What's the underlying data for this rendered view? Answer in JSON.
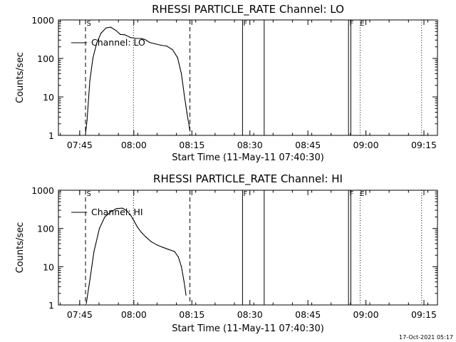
{
  "footer": {
    "date": "17-Oct-2021 05:17"
  },
  "panel_geometry_note": "",
  "chart_data": [
    {
      "type": "line",
      "title": "RHESSI PARTICLE_RATE Channel: LO",
      "xlabel": "Start Time (11-May-11 07:40:30)",
      "ylabel": "Counts/sec",
      "y_scale": "log",
      "ylim": [
        1,
        1000
      ],
      "y_ticks": [
        1,
        10,
        100,
        1000
      ],
      "y_tick_labels": [
        "1",
        "10",
        "100",
        "1000"
      ],
      "x_unit": "minutes after 07:40:30",
      "xlim": [
        0,
        98
      ],
      "x_ticks": [
        5.5,
        19.5,
        34.5,
        49.5,
        64.5,
        79.5,
        94.5
      ],
      "x_tick_labels": [
        "07:45",
        "08:00",
        "08:15",
        "08:30",
        "08:45",
        "09:00",
        "09:15"
      ],
      "legend": {
        "label": "Channel: LO",
        "position": "top-left"
      },
      "markers": {
        "S": 7.0,
        "F1": 47.5,
        "F2": 75.0,
        "E": 77.7
      },
      "vlines_dashed": [
        7.0,
        34.0
      ],
      "vlines_dotted": [
        19.4,
        78.0,
        93.9
      ],
      "vlines_solid": [
        47.6,
        53.2,
        75.0,
        75.6
      ],
      "series": [
        {
          "name": "Channel: LO",
          "x": [
            7.0,
            7.4,
            8.1,
            8.9,
            9.9,
            11.0,
            12.3,
            13.5,
            14.9,
            16.0,
            17.2,
            18.6,
            20.0,
            21.4,
            22.4,
            23.6,
            25.0,
            26.5,
            28.0,
            29.5,
            30.8,
            31.8,
            32.5,
            33.2,
            34.0
          ],
          "y": [
            1.1,
            2.5,
            25,
            100,
            250,
            450,
            620,
            650,
            530,
            420,
            410,
            350,
            330,
            330,
            310,
            260,
            240,
            220,
            210,
            170,
            105,
            40,
            12,
            4,
            1.3
          ]
        }
      ]
    },
    {
      "type": "line",
      "title": "RHESSI PARTICLE_RATE Channel: HI",
      "xlabel": "Start Time (11-May-11 07:40:30)",
      "ylabel": "Counts/sec",
      "y_scale": "log",
      "ylim": [
        1,
        1000
      ],
      "y_ticks": [
        1,
        10,
        100,
        1000
      ],
      "y_tick_labels": [
        "1",
        "10",
        "100",
        "1000"
      ],
      "x_unit": "minutes after 07:40:30",
      "xlim": [
        0,
        98
      ],
      "x_ticks": [
        5.5,
        19.5,
        34.5,
        49.5,
        64.5,
        79.5,
        94.5
      ],
      "x_tick_labels": [
        "07:45",
        "08:00",
        "08:15",
        "08:30",
        "08:45",
        "09:00",
        "09:15"
      ],
      "legend": {
        "label": "Channel: HI",
        "position": "top-left"
      },
      "markers": {
        "S": 7.0,
        "F1": 47.5,
        "F2": 75.0,
        "E": 77.7
      },
      "vlines_dashed": [
        7.0,
        34.0
      ],
      "vlines_dotted": [
        19.4,
        78.0,
        93.9
      ],
      "vlines_solid": [
        47.6,
        53.2,
        75.0,
        75.6
      ],
      "series": [
        {
          "name": "Channel: HI",
          "x": [
            7.2,
            8.2,
            9.2,
            10.6,
            12.0,
            13.5,
            15.0,
            16.5,
            17.5,
            18.6,
            19.5,
            20.4,
            21.4,
            22.6,
            24.0,
            25.5,
            27.0,
            28.6,
            30.0,
            31.0,
            31.8,
            32.5,
            33.0
          ],
          "y": [
            1.1,
            5,
            25,
            100,
            200,
            270,
            330,
            340,
            300,
            230,
            160,
            110,
            80,
            60,
            45,
            37,
            32,
            28,
            25,
            18,
            10,
            4,
            1.8
          ]
        }
      ]
    }
  ]
}
